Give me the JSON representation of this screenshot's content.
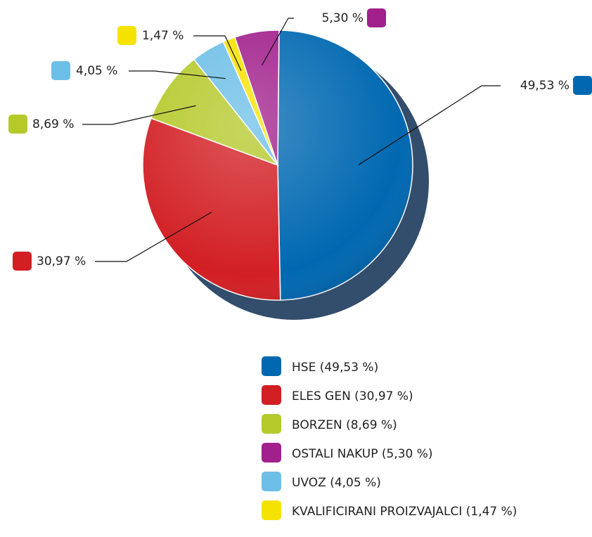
{
  "chart_data": {
    "type": "pie",
    "categories": [
      "HSE (49,53 %)",
      "ELES GEN (30,97 %)",
      "BORZEN (8,69 %)",
      "OSTALI NAKUP (5,30 %)",
      "UVOZ (4,05 %)",
      "KVALIFICIRANI PROIZVAJALCI (1,47 %)"
    ],
    "values": [
      49.53,
      30.97,
      8.69,
      5.3,
      4.05,
      1.47
    ],
    "value_labels": [
      "49,53 %",
      "30,97 %",
      "8,69 %",
      "5,30 %",
      "4,05 %",
      "1,47 %"
    ],
    "colors": [
      "#0068b1",
      "#d21f24",
      "#b5c92b",
      "#a1208b",
      "#6dbfe7",
      "#f6e200"
    ]
  }
}
